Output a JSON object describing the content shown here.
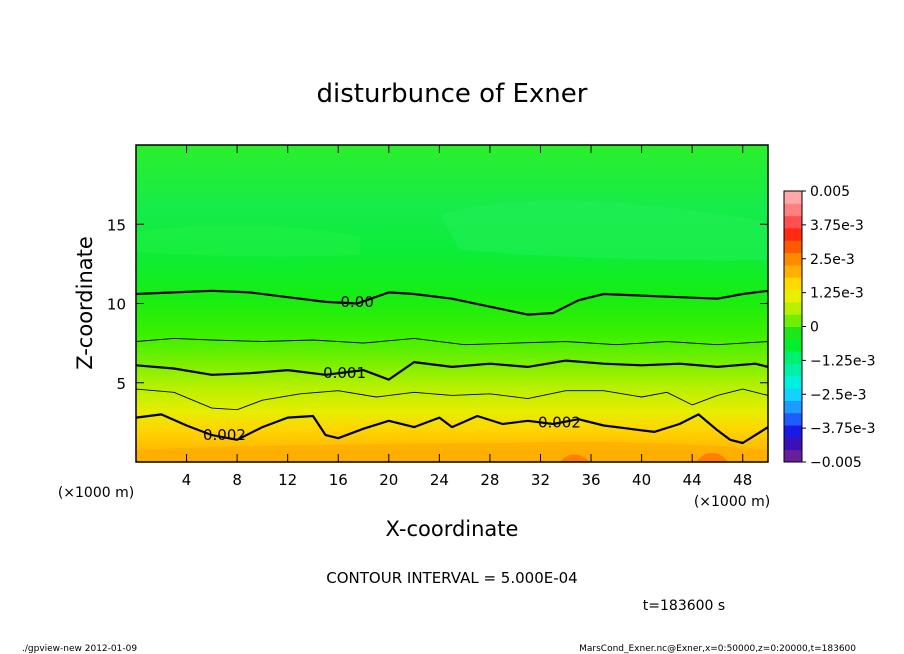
{
  "chart_data": {
    "type": "heatmap",
    "title": "disturbunce of Exner",
    "xlabel": "X-coordinate",
    "ylabel": "Z-coordinate",
    "x_unit_left": "(×1000 m)",
    "x_unit_right": "(×1000 m)",
    "x_ticks": [
      4,
      8,
      12,
      16,
      20,
      24,
      28,
      32,
      36,
      40,
      44,
      48
    ],
    "y_ticks": [
      5,
      10,
      15
    ],
    "xlim": [
      0,
      50
    ],
    "ylim": [
      0,
      20
    ],
    "contour_interval_label": "CONTOUR INTERVAL = 5.000E-04",
    "time_label": "t=183600 s",
    "contour_labels": [
      {
        "text": "0.00",
        "x": 17.5,
        "z": 10.1
      },
      {
        "text": "0.001",
        "x": 16.5,
        "z": 5.6
      },
      {
        "text": "0.002",
        "x": 7.0,
        "z": 1.7
      },
      {
        "text": "0.002",
        "x": 33.5,
        "z": 2.5
      }
    ],
    "contours": [
      {
        "level": "0.0000",
        "bold": true,
        "points": [
          [
            0,
            10.6
          ],
          [
            3,
            10.7
          ],
          [
            6,
            10.8
          ],
          [
            9,
            10.7
          ],
          [
            12,
            10.4
          ],
          [
            15,
            10.1
          ],
          [
            17.5,
            10.0
          ],
          [
            20,
            10.7
          ],
          [
            22,
            10.6
          ],
          [
            25,
            10.3
          ],
          [
            28,
            9.8
          ],
          [
            31,
            9.3
          ],
          [
            33,
            9.4
          ],
          [
            35,
            10.2
          ],
          [
            37,
            10.6
          ],
          [
            40,
            10.5
          ],
          [
            43,
            10.4
          ],
          [
            46,
            10.3
          ],
          [
            48,
            10.6
          ],
          [
            50,
            10.8
          ]
        ]
      },
      {
        "level": "0.0005",
        "bold": false,
        "points": [
          [
            0,
            7.6
          ],
          [
            3,
            7.8
          ],
          [
            6,
            7.7
          ],
          [
            10,
            7.6
          ],
          [
            14,
            7.7
          ],
          [
            18,
            7.5
          ],
          [
            22,
            7.8
          ],
          [
            26,
            7.4
          ],
          [
            30,
            7.5
          ],
          [
            34,
            7.6
          ],
          [
            38,
            7.4
          ],
          [
            42,
            7.6
          ],
          [
            46,
            7.4
          ],
          [
            50,
            7.6
          ]
        ]
      },
      {
        "level": "0.0010",
        "bold": true,
        "points": [
          [
            0,
            6.1
          ],
          [
            3,
            5.9
          ],
          [
            6,
            5.5
          ],
          [
            9,
            5.6
          ],
          [
            12,
            5.8
          ],
          [
            15,
            5.5
          ],
          [
            18,
            5.8
          ],
          [
            20,
            5.2
          ],
          [
            22,
            6.3
          ],
          [
            25,
            6.0
          ],
          [
            28,
            6.2
          ],
          [
            31,
            6.0
          ],
          [
            34,
            6.4
          ],
          [
            37,
            6.2
          ],
          [
            40,
            6.1
          ],
          [
            43,
            6.2
          ],
          [
            46,
            6.0
          ],
          [
            49,
            6.2
          ],
          [
            50,
            6.0
          ]
        ]
      },
      {
        "level": "0.0015",
        "bold": false,
        "points": [
          [
            0,
            4.6
          ],
          [
            3,
            4.4
          ],
          [
            6,
            3.4
          ],
          [
            8,
            3.3
          ],
          [
            10,
            3.9
          ],
          [
            13,
            4.3
          ],
          [
            16,
            4.5
          ],
          [
            19,
            4.1
          ],
          [
            22,
            4.4
          ],
          [
            25,
            4.2
          ],
          [
            28,
            4.3
          ],
          [
            31,
            4.0
          ],
          [
            34,
            4.5
          ],
          [
            37,
            4.5
          ],
          [
            40,
            4.1
          ],
          [
            42,
            4.4
          ],
          [
            44,
            3.6
          ],
          [
            46,
            4.2
          ],
          [
            48,
            4.6
          ],
          [
            50,
            4.2
          ]
        ]
      },
      {
        "level": "0.0020",
        "bold": true,
        "points": [
          [
            0,
            2.8
          ],
          [
            2,
            3.0
          ],
          [
            4,
            2.3
          ],
          [
            6,
            1.7
          ],
          [
            8,
            1.4
          ],
          [
            10,
            2.2
          ],
          [
            12,
            2.8
          ],
          [
            14,
            2.9
          ],
          [
            15,
            1.7
          ],
          [
            16,
            1.5
          ],
          [
            18,
            2.1
          ],
          [
            20,
            2.6
          ],
          [
            22,
            2.2
          ],
          [
            24,
            2.8
          ],
          [
            25,
            2.2
          ],
          [
            27,
            2.9
          ],
          [
            29,
            2.4
          ],
          [
            31,
            2.6
          ],
          [
            33,
            2.4
          ],
          [
            35,
            2.7
          ],
          [
            37,
            2.3
          ],
          [
            39,
            2.1
          ],
          [
            41,
            1.9
          ],
          [
            43,
            2.4
          ],
          [
            44.5,
            3.0
          ],
          [
            46,
            2.0
          ],
          [
            47,
            1.4
          ],
          [
            48,
            1.2
          ],
          [
            49,
            1.7
          ],
          [
            50,
            2.2
          ]
        ]
      }
    ],
    "colorbar": {
      "labels": [
        "0.005",
        "3.75e-3",
        "2.5e-3",
        "1.25e-3",
        "0",
        "−1.25e-3",
        "−2.5e-3",
        "−3.75e-3",
        "−0.005"
      ],
      "colors": [
        "#6a1f9a",
        "#3b10b8",
        "#1a1ae6",
        "#1f5cff",
        "#1c9cff",
        "#12d2ff",
        "#00f0e0",
        "#00f0a8",
        "#00f070",
        "#00f030",
        "#1fe61a",
        "#70f000",
        "#b8f000",
        "#e8f000",
        "#ffd900",
        "#ffb000",
        "#ff8a00",
        "#ff5a00",
        "#ff2a10",
        "#ff4f50",
        "#ff8080",
        "#ffa8a8"
      ]
    },
    "footer_left": "./gpview-new   2012-01-09",
    "footer_right": "MarsCond_Exner.nc@Exner,x=0:50000,z=0:20000,t=183600"
  }
}
